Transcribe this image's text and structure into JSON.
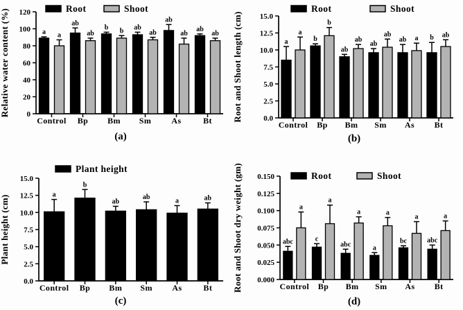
{
  "chart_data": [
    {
      "type": "bar",
      "panel_label": "(a)",
      "ylabel": "Relative water content (%)",
      "ylim": [
        0,
        120
      ],
      "ytick_labels": [
        "0",
        "20",
        "40",
        "60",
        "80",
        "100",
        "120"
      ],
      "categories": [
        "Control",
        "Bp",
        "Bm",
        "Sm",
        "As",
        "Bt"
      ],
      "grid": false,
      "legend_position": "top",
      "series": [
        {
          "name": "Root",
          "color": "#000000",
          "values": [
            89,
            95,
            94,
            93,
            98,
            92
          ],
          "errors": [
            1.5,
            6,
            2,
            3,
            7,
            2
          ],
          "letters": [
            "a",
            "ab",
            "b",
            "ab",
            "ab",
            "ab"
          ]
        },
        {
          "name": "Shoot",
          "color": "#b3b3b3",
          "values": [
            80,
            86,
            89,
            87,
            82,
            86
          ],
          "errors": [
            7,
            3,
            3,
            3,
            7,
            3
          ],
          "letters": [
            "a",
            "ab",
            "b",
            "ab",
            "ab",
            "ab"
          ]
        }
      ]
    },
    {
      "type": "bar",
      "panel_label": "(b)",
      "ylabel": "Root and Shoot length (cm)",
      "ylim": [
        0,
        15
      ],
      "ytick_labels": [
        "0.0",
        "2.5",
        "5.0",
        "7.5",
        "10.0",
        "12.5",
        "15.0"
      ],
      "categories": [
        "Control",
        "Bp",
        "Bm",
        "Sm",
        "As",
        "Bt"
      ],
      "grid": false,
      "legend_position": "top",
      "series": [
        {
          "name": "Root",
          "color": "#000000",
          "values": [
            8.5,
            10.6,
            9.0,
            9.6,
            9.6,
            9.6
          ],
          "errors": [
            2.0,
            0.3,
            0.35,
            0.6,
            1.2,
            1.5
          ],
          "letters": [
            "a",
            "b",
            "ab",
            "ab",
            "ab",
            "b"
          ]
        },
        {
          "name": "Shoot",
          "color": "#b3b3b3",
          "values": [
            10.0,
            12.1,
            10.2,
            10.4,
            9.9,
            10.5
          ],
          "errors": [
            1.9,
            1.2,
            0.6,
            1.2,
            1.1,
            1.0
          ],
          "letters": [
            "a",
            "b",
            "ab",
            "ab",
            "a",
            "ab"
          ]
        }
      ]
    },
    {
      "type": "bar",
      "panel_label": "(c)",
      "ylabel": "Plant height (cm)",
      "ylim": [
        0,
        15
      ],
      "ytick_labels": [
        "0.0",
        "2.5",
        "5.0",
        "7.5",
        "10.0",
        "12.5",
        "15.0"
      ],
      "categories": [
        "Control",
        "Bp",
        "Bm",
        "Sm",
        "As",
        "Bt"
      ],
      "grid": false,
      "legend_position": "top",
      "series": [
        {
          "name": "Plant height",
          "color": "#000000",
          "values": [
            10.1,
            12.1,
            10.2,
            10.4,
            9.9,
            10.5
          ],
          "errors": [
            1.8,
            1.25,
            0.7,
            1.15,
            1.1,
            0.9
          ],
          "letters": [
            "a",
            "b",
            "ab",
            "ab",
            "a",
            "ab"
          ]
        }
      ]
    },
    {
      "type": "bar",
      "panel_label": "(d)",
      "ylabel": "Root and Shoot dry weight (gm)",
      "ylim": [
        0,
        0.15
      ],
      "ytick_labels": [
        "0.000",
        "0.025",
        "0.050",
        "0.075",
        "0.100",
        "0.125",
        "0.150"
      ],
      "categories": [
        "Control",
        "Bp",
        "Bm",
        "Sm",
        "As",
        "Bt"
      ],
      "grid": false,
      "legend_position": "top",
      "series": [
        {
          "name": "Root",
          "color": "#000000",
          "values": [
            0.041,
            0.047,
            0.038,
            0.035,
            0.046,
            0.044
          ],
          "errors": [
            0.007,
            0.005,
            0.006,
            0.004,
            0.003,
            0.006
          ],
          "letters": [
            "abc",
            "c",
            "abc",
            "a",
            "bc",
            "abc"
          ]
        },
        {
          "name": "Shoot",
          "color": "#b3b3b3",
          "values": [
            0.075,
            0.081,
            0.082,
            0.078,
            0.067,
            0.071
          ],
          "errors": [
            0.023,
            0.027,
            0.009,
            0.012,
            0.017,
            0.014
          ],
          "letters": [
            "a",
            "a",
            "a",
            "a",
            "a",
            "a"
          ]
        }
      ]
    }
  ]
}
